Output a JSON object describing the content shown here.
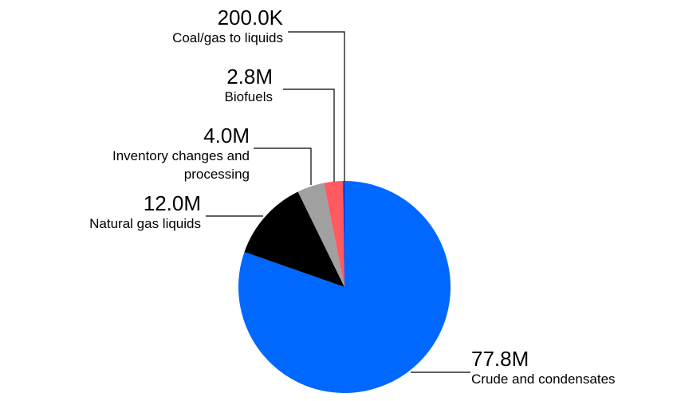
{
  "chart_data": {
    "type": "pie",
    "categories": [
      "Crude and condensates",
      "Natural gas liquids",
      "Inventory changes and processing",
      "Biofuels",
      "Coal/gas to liquids"
    ],
    "values": [
      77800000,
      12000000,
      4000000,
      2800000,
      200000
    ],
    "value_labels": [
      "77.8M",
      "12.0M",
      "4.0M",
      "2.8M",
      "200.0K"
    ],
    "colors": [
      "#0068ff",
      "#000000",
      "#a0a0a0",
      "#ff5a5f",
      "#1b1bd0"
    ]
  }
}
